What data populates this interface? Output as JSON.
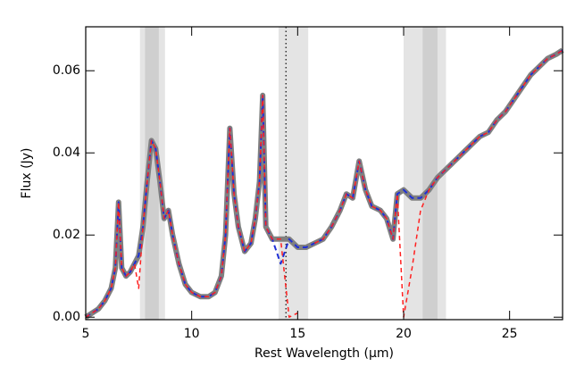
{
  "chart_data": {
    "type": "line",
    "xlabel": "Rest Wavelength (μm)",
    "ylabel": "Flux (Jy)",
    "xlim": [
      5,
      27.5
    ],
    "ylim": [
      -0.0006,
      0.0707
    ],
    "xticks": [
      5,
      10,
      15,
      20,
      25
    ],
    "yticks": [
      {
        "value": 0,
        "label": "0.00"
      },
      0.02,
      0.04,
      0.06
    ],
    "bands": [
      {
        "xlim": [
          7.56,
          8.74
        ],
        "color": "#e4e4e4"
      },
      {
        "xlim": [
          7.8,
          8.45
        ],
        "color": "#cfcfcf"
      },
      {
        "xlim": [
          14.1,
          15.5
        ],
        "color": "#e4e4e4"
      },
      {
        "xlim": [
          20.0,
          22.0
        ],
        "color": "#e4e4e4"
      },
      {
        "xlim": [
          20.9,
          21.6
        ],
        "color": "#cfcfcf"
      }
    ],
    "vline": 14.45,
    "x": [
      5.0,
      5.3,
      5.6,
      5.9,
      6.2,
      6.4,
      6.55,
      6.7,
      6.9,
      7.1,
      7.3,
      7.5,
      7.7,
      7.9,
      8.1,
      8.3,
      8.5,
      8.7,
      8.9,
      9.1,
      9.4,
      9.7,
      10.0,
      10.4,
      10.8,
      11.1,
      11.4,
      11.6,
      11.8,
      12.0,
      12.2,
      12.5,
      12.8,
      13.0,
      13.2,
      13.35,
      13.5,
      13.8,
      14.2,
      14.6,
      15.0,
      15.4,
      15.8,
      16.2,
      16.6,
      17.0,
      17.3,
      17.6,
      17.9,
      18.2,
      18.5,
      18.9,
      19.2,
      19.5,
      19.7,
      20.0,
      20.4,
      20.8,
      21.2,
      21.6,
      22.0,
      22.4,
      22.8,
      23.2,
      23.6,
      24.0,
      24.4,
      24.8,
      25.2,
      25.6,
      26.0,
      26.4,
      26.8,
      27.2,
      27.5
    ],
    "series": [
      {
        "color": "#808080",
        "width": 6,
        "dash": "none",
        "values": [
          0.0,
          0.001,
          0.002,
          0.004,
          0.007,
          0.012,
          0.028,
          0.012,
          0.01,
          0.011,
          0.013,
          0.015,
          0.022,
          0.033,
          0.043,
          0.041,
          0.033,
          0.024,
          0.026,
          0.02,
          0.013,
          0.008,
          0.006,
          0.005,
          0.005,
          0.006,
          0.01,
          0.02,
          0.046,
          0.03,
          0.022,
          0.016,
          0.018,
          0.024,
          0.033,
          0.054,
          0.022,
          0.019,
          0.019,
          0.019,
          0.017,
          0.017,
          0.018,
          0.019,
          0.022,
          0.026,
          0.03,
          0.029,
          0.038,
          0.031,
          0.027,
          0.026,
          0.024,
          0.019,
          0.03,
          0.031,
          0.029,
          0.029,
          0.031,
          0.034,
          0.036,
          0.038,
          0.04,
          0.042,
          0.044,
          0.045,
          0.048,
          0.05,
          0.053,
          0.056,
          0.059,
          0.061,
          0.063,
          0.064,
          0.065
        ]
      },
      {
        "color": "#1f2fd6",
        "width": 2,
        "dash": "6,4",
        "values": [
          0.0,
          0.001,
          0.002,
          0.004,
          0.007,
          0.012,
          0.028,
          0.012,
          0.01,
          0.011,
          0.013,
          0.015,
          0.022,
          0.033,
          0.043,
          0.041,
          0.033,
          0.024,
          0.026,
          0.02,
          0.013,
          0.008,
          0.006,
          0.005,
          0.005,
          0.006,
          0.01,
          0.02,
          0.046,
          0.03,
          0.022,
          0.016,
          0.018,
          0.024,
          0.033,
          0.054,
          0.022,
          0.019,
          0.013,
          0.019,
          0.017,
          0.017,
          0.018,
          0.019,
          0.022,
          0.026,
          0.03,
          0.029,
          0.038,
          0.031,
          0.027,
          0.026,
          0.024,
          0.019,
          0.03,
          0.031,
          0.029,
          0.029,
          0.031,
          0.034,
          0.036,
          0.038,
          0.04,
          0.042,
          0.044,
          0.045,
          0.048,
          0.05,
          0.053,
          0.056,
          0.059,
          0.061,
          0.063,
          0.064,
          0.065
        ]
      },
      {
        "color": "#ff2020",
        "width": 1.5,
        "dash": "5,4",
        "values": [
          0.0,
          0.001,
          0.002,
          0.004,
          0.007,
          0.012,
          0.028,
          0.012,
          0.01,
          0.011,
          0.013,
          0.007,
          0.022,
          0.033,
          0.043,
          0.041,
          0.033,
          0.024,
          0.026,
          0.02,
          0.013,
          0.008,
          0.006,
          0.005,
          0.005,
          0.006,
          0.01,
          0.02,
          0.046,
          0.03,
          0.022,
          0.016,
          0.018,
          0.024,
          0.033,
          0.054,
          0.022,
          0.019,
          0.019,
          0.0,
          0.001,
          null,
          0.018,
          0.019,
          0.022,
          0.026,
          0.03,
          0.029,
          0.038,
          0.031,
          0.027,
          0.026,
          0.024,
          0.019,
          0.03,
          0.0,
          0.012,
          0.026,
          0.031,
          0.034,
          0.036,
          0.038,
          0.04,
          0.042,
          0.044,
          0.045,
          0.048,
          0.05,
          0.053,
          0.056,
          0.059,
          0.061,
          0.063,
          0.064,
          0.065
        ]
      }
    ]
  }
}
